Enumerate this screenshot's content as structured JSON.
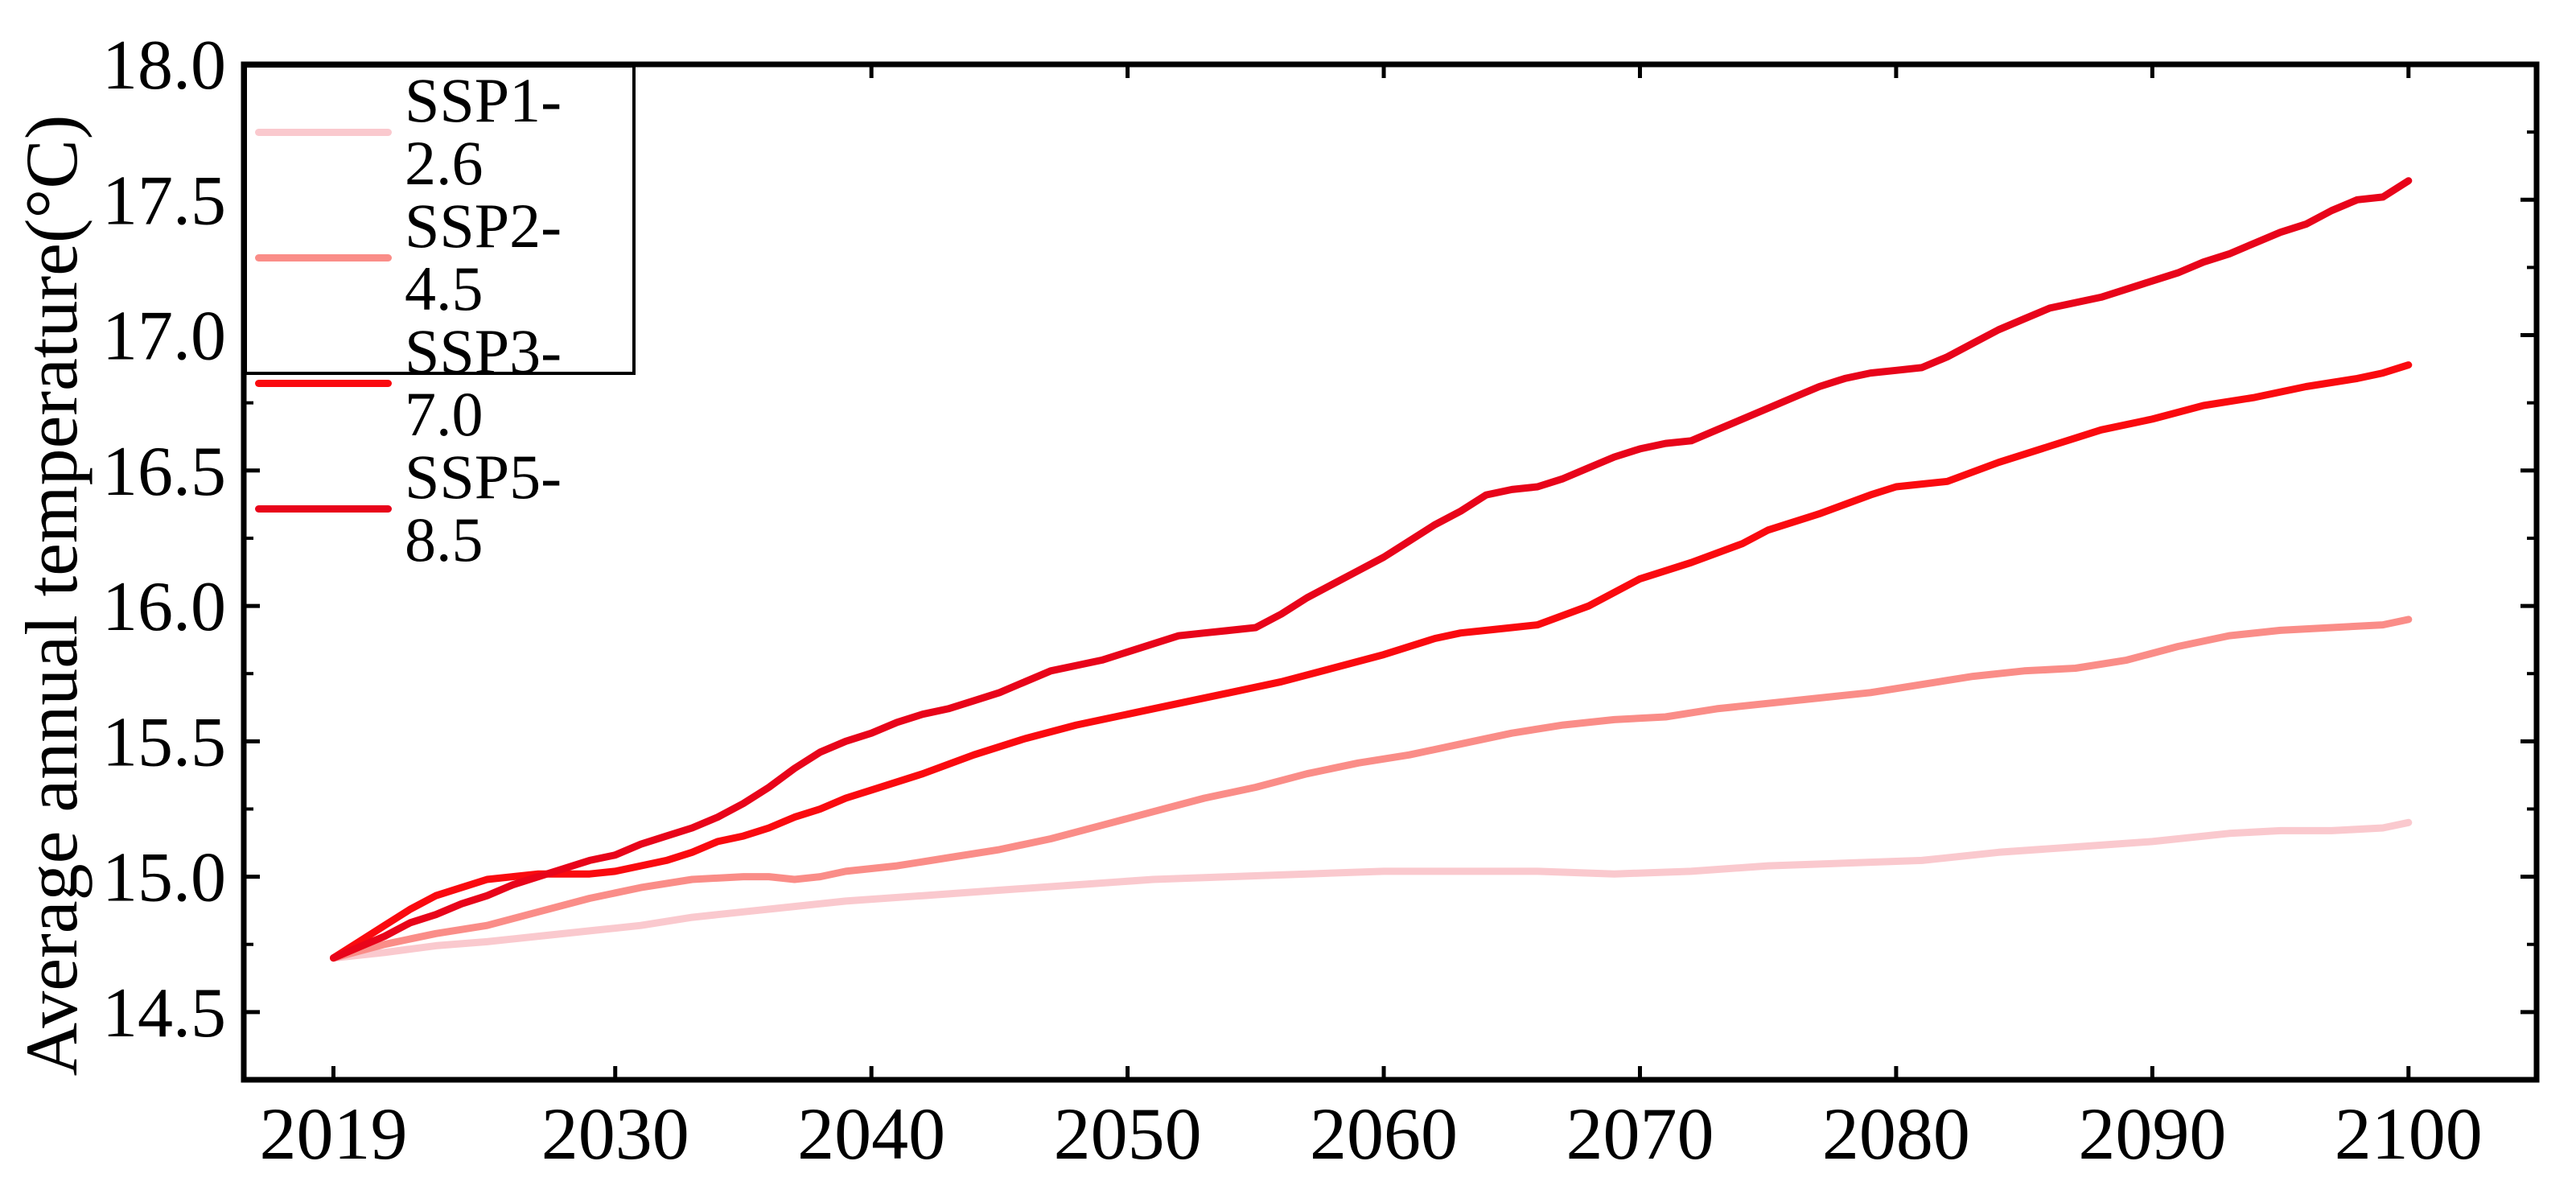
{
  "figure": {
    "background": "#ffffff",
    "axis_color": "#000000",
    "y_axis_title": "Average annual temperature(°C)",
    "x_tick_labels": [
      "2019",
      "2030",
      "2040",
      "2050",
      "2060",
      "2070",
      "2080",
      "2090",
      "2100"
    ],
    "y_tick_labels": [
      "14.5",
      "15.0",
      "15.5",
      "16.0",
      "16.5",
      "17.0",
      "17.5",
      "18.0"
    ]
  },
  "legend": {
    "position": "upper left",
    "entries": [
      {
        "label": "SSP1-2.6",
        "color": "#fac9ce"
      },
      {
        "label": "SSP2-4.5",
        "color": "#fa8d88"
      },
      {
        "label": "SSP3-7.0",
        "color": "#fa0a0f"
      },
      {
        "label": "SSP5-8.5",
        "color": "#e8041a"
      }
    ]
  },
  "chart_data": {
    "type": "line",
    "title": "",
    "xlabel": "",
    "ylabel": "Average annual temperature(°C)",
    "xlim": [
      2015.5,
      2105
    ],
    "ylim": [
      14.25,
      18.0
    ],
    "x_major_ticks": [
      2019,
      2030,
      2040,
      2050,
      2060,
      2070,
      2080,
      2090,
      2100
    ],
    "y_major_ticks": [
      14.5,
      15.0,
      15.5,
      16.0,
      16.5,
      17.0,
      17.5,
      18.0
    ],
    "y_minor_ticks": [
      14.75,
      15.25,
      15.75,
      16.25,
      16.75,
      17.25,
      17.75
    ],
    "grid": false,
    "legend_position": "upper left",
    "tick_direction": "in",
    "series": [
      {
        "name": "SSP1-2.6",
        "color": "#fac9ce",
        "points": [
          [
            2019,
            14.7
          ],
          [
            2021,
            14.72
          ],
          [
            2023,
            14.745
          ],
          [
            2025,
            14.76
          ],
          [
            2027,
            14.78
          ],
          [
            2029,
            14.8
          ],
          [
            2031,
            14.82
          ],
          [
            2033,
            14.85
          ],
          [
            2035,
            14.87
          ],
          [
            2037,
            14.89
          ],
          [
            2039,
            14.91
          ],
          [
            2042,
            14.93
          ],
          [
            2045,
            14.95
          ],
          [
            2048,
            14.97
          ],
          [
            2051,
            14.99
          ],
          [
            2054,
            15.0
          ],
          [
            2057,
            15.01
          ],
          [
            2060,
            15.02
          ],
          [
            2063,
            15.02
          ],
          [
            2066,
            15.02
          ],
          [
            2069,
            15.01
          ],
          [
            2072,
            15.02
          ],
          [
            2075,
            15.04
          ],
          [
            2078,
            15.05
          ],
          [
            2081,
            15.06
          ],
          [
            2084,
            15.09
          ],
          [
            2087,
            15.11
          ],
          [
            2090,
            15.13
          ],
          [
            2093,
            15.16
          ],
          [
            2095,
            15.17
          ],
          [
            2097,
            15.17
          ],
          [
            2099,
            15.18
          ],
          [
            2100,
            15.2
          ]
        ]
      },
      {
        "name": "SSP2-4.5",
        "color": "#fa8d88",
        "points": [
          [
            2019,
            14.7
          ],
          [
            2021,
            14.75
          ],
          [
            2023,
            14.79
          ],
          [
            2025,
            14.82
          ],
          [
            2027,
            14.87
          ],
          [
            2029,
            14.92
          ],
          [
            2031,
            14.96
          ],
          [
            2033,
            14.99
          ],
          [
            2035,
            15.0
          ],
          [
            2036,
            15.0
          ],
          [
            2037,
            14.99
          ],
          [
            2038,
            15.0
          ],
          [
            2039,
            15.02
          ],
          [
            2041,
            15.04
          ],
          [
            2043,
            15.07
          ],
          [
            2045,
            15.1
          ],
          [
            2047,
            15.14
          ],
          [
            2049,
            15.19
          ],
          [
            2051,
            15.24
          ],
          [
            2053,
            15.29
          ],
          [
            2055,
            15.33
          ],
          [
            2057,
            15.38
          ],
          [
            2059,
            15.42
          ],
          [
            2061,
            15.45
          ],
          [
            2063,
            15.49
          ],
          [
            2065,
            15.53
          ],
          [
            2067,
            15.56
          ],
          [
            2069,
            15.58
          ],
          [
            2071,
            15.59
          ],
          [
            2073,
            15.62
          ],
          [
            2075,
            15.64
          ],
          [
            2077,
            15.66
          ],
          [
            2079,
            15.68
          ],
          [
            2081,
            15.71
          ],
          [
            2083,
            15.74
          ],
          [
            2085,
            15.76
          ],
          [
            2087,
            15.77
          ],
          [
            2089,
            15.8
          ],
          [
            2091,
            15.85
          ],
          [
            2093,
            15.89
          ],
          [
            2095,
            15.91
          ],
          [
            2097,
            15.92
          ],
          [
            2099,
            15.93
          ],
          [
            2100,
            15.95
          ]
        ]
      },
      {
        "name": "SSP3-7.0",
        "color": "#fa0a0f",
        "points": [
          [
            2019,
            14.7
          ],
          [
            2020,
            14.76
          ],
          [
            2021,
            14.82
          ],
          [
            2022,
            14.88
          ],
          [
            2023,
            14.93
          ],
          [
            2024,
            14.96
          ],
          [
            2025,
            14.99
          ],
          [
            2026,
            15.0
          ],
          [
            2027,
            15.01
          ],
          [
            2028,
            15.01
          ],
          [
            2029,
            15.01
          ],
          [
            2030,
            15.02
          ],
          [
            2031,
            15.04
          ],
          [
            2032,
            15.06
          ],
          [
            2033,
            15.09
          ],
          [
            2034,
            15.13
          ],
          [
            2035,
            15.15
          ],
          [
            2036,
            15.18
          ],
          [
            2037,
            15.22
          ],
          [
            2038,
            15.25
          ],
          [
            2039,
            15.29
          ],
          [
            2040,
            15.32
          ],
          [
            2042,
            15.38
          ],
          [
            2044,
            15.45
          ],
          [
            2046,
            15.51
          ],
          [
            2048,
            15.56
          ],
          [
            2050,
            15.6
          ],
          [
            2052,
            15.64
          ],
          [
            2054,
            15.68
          ],
          [
            2056,
            15.72
          ],
          [
            2058,
            15.77
          ],
          [
            2060,
            15.82
          ],
          [
            2062,
            15.88
          ],
          [
            2063,
            15.9
          ],
          [
            2064,
            15.91
          ],
          [
            2065,
            15.92
          ],
          [
            2066,
            15.93
          ],
          [
            2068,
            16.0
          ],
          [
            2070,
            16.1
          ],
          [
            2072,
            16.16
          ],
          [
            2074,
            16.23
          ],
          [
            2075,
            16.28
          ],
          [
            2077,
            16.34
          ],
          [
            2079,
            16.41
          ],
          [
            2080,
            16.44
          ],
          [
            2081,
            16.45
          ],
          [
            2082,
            16.46
          ],
          [
            2084,
            16.53
          ],
          [
            2086,
            16.59
          ],
          [
            2088,
            16.65
          ],
          [
            2090,
            16.69
          ],
          [
            2092,
            16.74
          ],
          [
            2094,
            16.77
          ],
          [
            2096,
            16.81
          ],
          [
            2098,
            16.84
          ],
          [
            2099,
            16.86
          ],
          [
            2100,
            16.89
          ]
        ]
      },
      {
        "name": "SSP5-8.5",
        "color": "#e8041a",
        "points": [
          [
            2019,
            14.7
          ],
          [
            2020,
            14.74
          ],
          [
            2021,
            14.78
          ],
          [
            2022,
            14.83
          ],
          [
            2023,
            14.86
          ],
          [
            2024,
            14.9
          ],
          [
            2025,
            14.93
          ],
          [
            2026,
            14.97
          ],
          [
            2027,
            15.0
          ],
          [
            2028,
            15.03
          ],
          [
            2029,
            15.06
          ],
          [
            2030,
            15.08
          ],
          [
            2031,
            15.12
          ],
          [
            2032,
            15.15
          ],
          [
            2033,
            15.18
          ],
          [
            2034,
            15.22
          ],
          [
            2035,
            15.27
          ],
          [
            2036,
            15.33
          ],
          [
            2037,
            15.4
          ],
          [
            2038,
            15.46
          ],
          [
            2039,
            15.5
          ],
          [
            2040,
            15.53
          ],
          [
            2041,
            15.57
          ],
          [
            2042,
            15.6
          ],
          [
            2043,
            15.62
          ],
          [
            2044,
            15.65
          ],
          [
            2045,
            15.68
          ],
          [
            2046,
            15.72
          ],
          [
            2047,
            15.76
          ],
          [
            2048,
            15.78
          ],
          [
            2049,
            15.8
          ],
          [
            2050,
            15.83
          ],
          [
            2051,
            15.86
          ],
          [
            2052,
            15.89
          ],
          [
            2053,
            15.9
          ],
          [
            2054,
            15.91
          ],
          [
            2055,
            15.92
          ],
          [
            2056,
            15.97
          ],
          [
            2057,
            16.03
          ],
          [
            2058,
            16.08
          ],
          [
            2059,
            16.13
          ],
          [
            2060,
            16.18
          ],
          [
            2061,
            16.24
          ],
          [
            2062,
            16.3
          ],
          [
            2063,
            16.35
          ],
          [
            2064,
            16.41
          ],
          [
            2065,
            16.43
          ],
          [
            2066,
            16.44
          ],
          [
            2067,
            16.47
          ],
          [
            2068,
            16.51
          ],
          [
            2069,
            16.55
          ],
          [
            2070,
            16.58
          ],
          [
            2071,
            16.6
          ],
          [
            2072,
            16.61
          ],
          [
            2073,
            16.65
          ],
          [
            2074,
            16.69
          ],
          [
            2075,
            16.73
          ],
          [
            2076,
            16.77
          ],
          [
            2077,
            16.81
          ],
          [
            2078,
            16.84
          ],
          [
            2079,
            16.86
          ],
          [
            2080,
            16.87
          ],
          [
            2081,
            16.88
          ],
          [
            2082,
            16.92
          ],
          [
            2083,
            16.97
          ],
          [
            2084,
            17.02
          ],
          [
            2085,
            17.06
          ],
          [
            2086,
            17.1
          ],
          [
            2087,
            17.12
          ],
          [
            2088,
            17.14
          ],
          [
            2089,
            17.17
          ],
          [
            2090,
            17.2
          ],
          [
            2091,
            17.23
          ],
          [
            2092,
            17.27
          ],
          [
            2093,
            17.3
          ],
          [
            2094,
            17.34
          ],
          [
            2095,
            17.38
          ],
          [
            2096,
            17.41
          ],
          [
            2097,
            17.46
          ],
          [
            2098,
            17.5
          ],
          [
            2099,
            17.51
          ],
          [
            2100,
            17.57
          ]
        ]
      }
    ]
  }
}
